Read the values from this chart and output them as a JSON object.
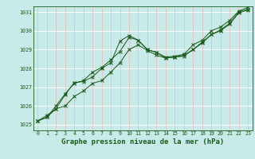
{
  "title": "Graphe pression niveau de la mer (hPa)",
  "bg_color": "#c8eae8",
  "line_color": "#1a5c1a",
  "grid_color_v": "#e8b8b8",
  "grid_color_h": "#ffffff",
  "xlim": [
    -0.5,
    23.5
  ],
  "ylim": [
    1024.7,
    1031.3
  ],
  "yticks": [
    1025,
    1026,
    1027,
    1028,
    1029,
    1030,
    1031
  ],
  "xticks": [
    0,
    1,
    2,
    3,
    4,
    5,
    6,
    7,
    8,
    9,
    10,
    11,
    12,
    13,
    14,
    15,
    16,
    17,
    18,
    19,
    20,
    21,
    22,
    23
  ],
  "line1_x": [
    0,
    1,
    2,
    3,
    4,
    5,
    6,
    7,
    8,
    9,
    10,
    11,
    12,
    13,
    14,
    15,
    16,
    17,
    18,
    19,
    20,
    21,
    22,
    23
  ],
  "line1_y": [
    1025.2,
    1025.5,
    1025.85,
    1026.6,
    1027.25,
    1027.3,
    1027.55,
    1028.0,
    1028.3,
    1029.45,
    1029.75,
    1029.5,
    1029.0,
    1028.85,
    1028.6,
    1028.65,
    1028.75,
    1029.25,
    1029.5,
    1030.0,
    1030.2,
    1030.55,
    1031.05,
    1031.25
  ],
  "line2_x": [
    0,
    1,
    2,
    3,
    4,
    5,
    6,
    7,
    8,
    9,
    10,
    11,
    12,
    13,
    14,
    15,
    16,
    17,
    18,
    19,
    20,
    21,
    22,
    23
  ],
  "line2_y": [
    1025.2,
    1025.4,
    1026.0,
    1026.65,
    1027.2,
    1027.35,
    1027.8,
    1028.05,
    1028.45,
    1028.9,
    1029.65,
    1029.5,
    1029.0,
    1028.85,
    1028.55,
    1028.6,
    1028.7,
    1029.0,
    1029.4,
    1029.8,
    1030.05,
    1030.4,
    1031.0,
    1031.15
  ],
  "line3_x": [
    0,
    1,
    2,
    3,
    4,
    5,
    6,
    7,
    8,
    9,
    10,
    11,
    12,
    13,
    14,
    15,
    16,
    17,
    18,
    19,
    20,
    21,
    22,
    23
  ],
  "line3_y": [
    1025.2,
    1025.4,
    1025.85,
    1026.0,
    1026.5,
    1026.8,
    1027.2,
    1027.35,
    1027.8,
    1028.3,
    1029.0,
    1029.25,
    1028.95,
    1028.7,
    1028.55,
    1028.6,
    1028.65,
    1029.0,
    1029.35,
    1029.8,
    1030.0,
    1030.35,
    1030.95,
    1031.1
  ],
  "title_fontsize": 6.5,
  "tick_fontsize": 4.8,
  "marker": "x",
  "marker_size": 2.5,
  "linewidth": 0.7
}
